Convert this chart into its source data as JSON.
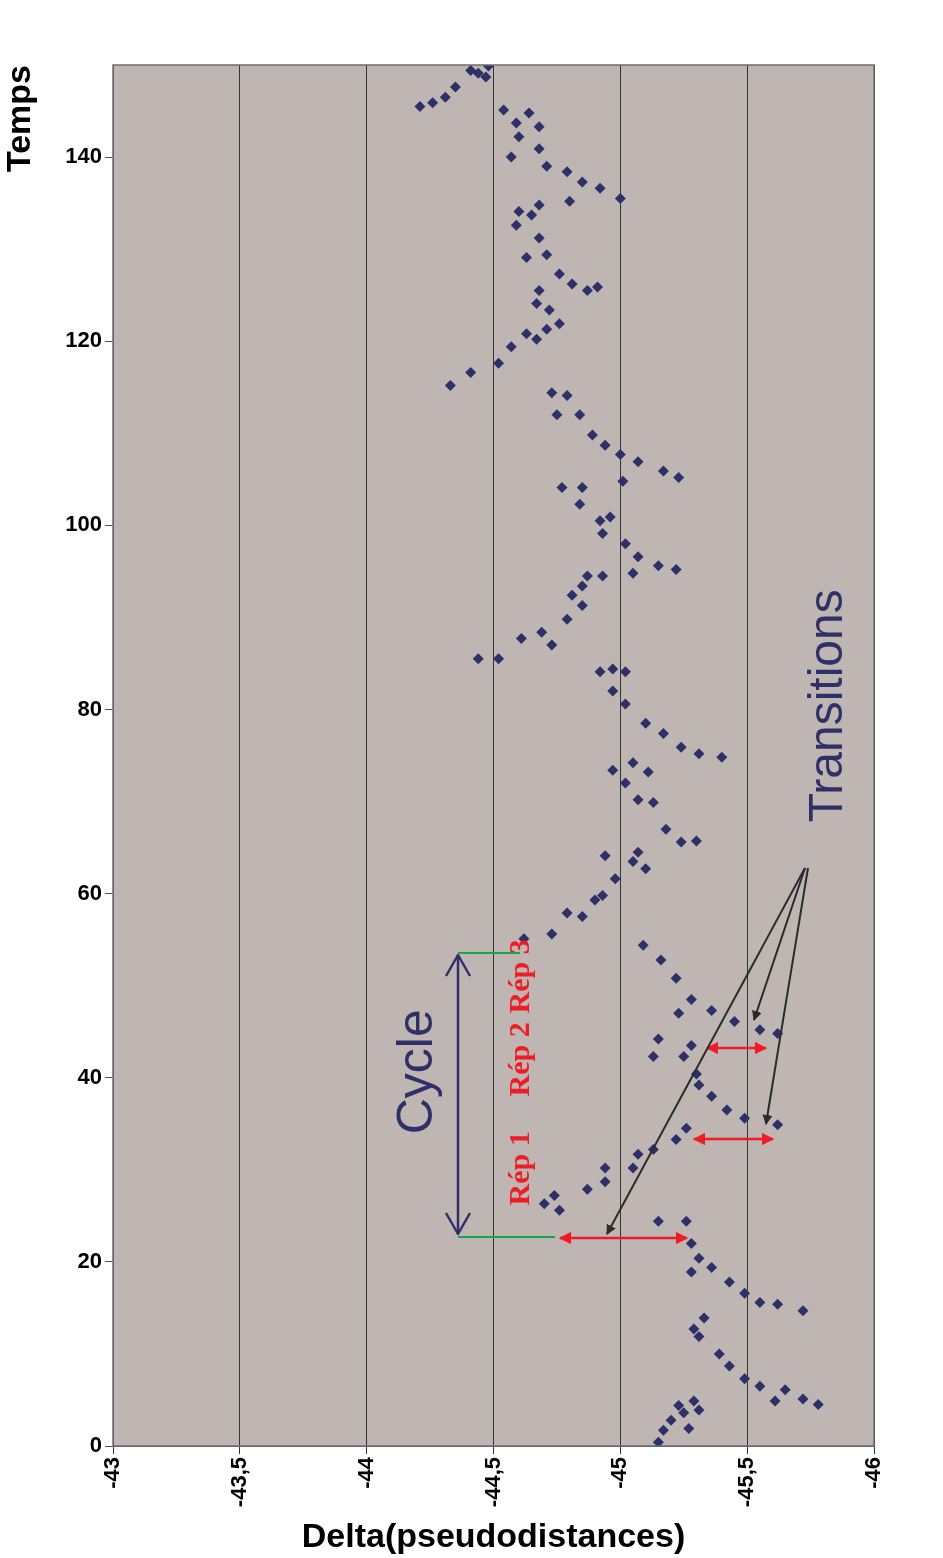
{
  "chart_data": {
    "type": "scatter",
    "xlabel": "Delta(pseudodistances)",
    "ylabel": "Temps",
    "xlim": [
      -43,
      -46
    ],
    "xticks": [
      -43,
      {
        "value": -43.5,
        "label": "-43,5"
      },
      -44,
      {
        "value": -44.5,
        "label": "-44,5"
      },
      -45,
      {
        "value": -45.5,
        "label": "-45,5"
      },
      -46
    ],
    "ylim": [
      0,
      150
    ],
    "yticks": [
      0,
      20,
      40,
      60,
      80,
      100,
      120,
      140
    ],
    "grid": "x",
    "marker": "diamond",
    "annotations": [
      "Cycle",
      "Rép 1",
      "Rép 2",
      "Rép 3",
      "Transitions"
    ],
    "series": [
      {
        "color": "#2e3068",
        "x": [
          -45.15,
          -45.17,
          -45.2,
          -45.27,
          -45.25,
          -45.23,
          -45.29,
          -45.31,
          -45.29,
          -45.33,
          -45.31,
          -45.39,
          -45.43,
          -45.49,
          -45.55,
          -45.61,
          -45.65,
          -45.72,
          -45.78,
          -45.26,
          -45.28,
          -45.31,
          -45.36,
          -45.28,
          -45.43,
          -45.49,
          -45.55,
          -45.62,
          -45.72,
          -45.15,
          -44.7,
          -44.76,
          -44.74,
          -44.87,
          -44.94,
          -44.94,
          -45.05,
          -45.07,
          -45.13,
          -45.22,
          -45.26,
          -45.15,
          -45.13,
          -45.25,
          -45.28,
          -45.3,
          -45.36,
          -45.42,
          -45.49,
          -45.62,
          -45.31,
          -45.09,
          -45.16,
          -45.22,
          -45.23,
          -45.28,
          -45.36,
          -45.45,
          -45.55,
          -45.62,
          -44.62,
          -44.73,
          -44.79,
          -44.85,
          -44.9,
          -44.93,
          -44.98,
          -44.94,
          -45.05,
          -45.1,
          -45.07,
          -44.97,
          -45.05,
          -45.11,
          -45.02,
          -45.07,
          -45.13,
          -45.18,
          -45.24,
          -45.3,
          -44.92,
          -44.97,
          -45.02,
          -44.97,
          -45.02,
          -45.1,
          -45.17,
          -45.24,
          -45.31,
          -45.4,
          -44.44,
          -44.52,
          -44.61,
          -44.69,
          -44.73,
          -44.79,
          -44.81,
          -44.85,
          -44.85,
          -44.87,
          -44.93,
          -44.77,
          -44.85,
          -44.84,
          -44.92,
          -44.96,
          -44.93,
          -45.02,
          -45.07,
          -45.15,
          -45.05,
          -45.22,
          -44.73,
          -44.79,
          -44.75,
          -44.84,
          -44.89,
          -44.94,
          -45.0,
          -45.07,
          -45.17,
          -45.23,
          -45.01,
          -44.33,
          -44.41,
          -44.52,
          -44.57,
          -44.63,
          -44.67,
          -44.71,
          -44.76,
          -44.67,
          -44.72,
          -44.68,
          -44.76,
          -44.81,
          -44.87,
          -44.91,
          -44.71,
          -44.63,
          -44.68,
          -44.59,
          -44.65,
          -44.6,
          -44.68,
          -44.54,
          -44.59,
          -44.64,
          -44.68,
          -44.6,
          -44.68,
          -44.57,
          -44.71,
          -44.79,
          -44.85,
          -44.92,
          -45.0,
          -44.8,
          -44.21,
          -44.26,
          -44.31,
          -44.35,
          -44.41,
          -44.44,
          -44.48,
          -44.47
        ],
        "values": [
          0.4,
          1.7,
          2.8,
          1.9,
          3.6,
          4.4,
          4.9,
          3.9,
          12.7,
          13.9,
          11.9,
          10.0,
          8.7,
          7.3,
          6.5,
          4.9,
          6.1,
          5.1,
          4.5,
          24.4,
          22.0,
          20.4,
          19.4,
          18.9,
          17.8,
          16.6,
          15.6,
          15.4,
          14.7,
          24.4,
          26.3,
          25.6,
          27.2,
          27.9,
          28.7,
          30.2,
          30.2,
          31.7,
          32.2,
          33.3,
          34.5,
          44.2,
          42.3,
          42.3,
          43.5,
          40.4,
          38.0,
          36.5,
          35.6,
          34.9,
          39.2,
          54.4,
          52.8,
          50.8,
          47.0,
          48.5,
          47.3,
          46.1,
          45.2,
          44.8,
          55.1,
          55.6,
          57.9,
          57.5,
          59.3,
          59.8,
          61.6,
          64.1,
          63.5,
          62.7,
          64.5,
          73.4,
          74.2,
          73.2,
          72.0,
          70.2,
          69.9,
          67.0,
          65.6,
          65.7,
          84.1,
          84.4,
          84.1,
          82.0,
          80.6,
          78.5,
          77.4,
          75.9,
          75.2,
          74.8,
          85.5,
          85.5,
          87.7,
          88.4,
          87.0,
          89.8,
          92.4,
          91.3,
          93.4,
          94.5,
          94.5,
          104.1,
          104.1,
          102.3,
          100.5,
          100.9,
          99.1,
          98.0,
          96.6,
          95.6,
          94.8,
          95.2,
          114.4,
          114.1,
          112.0,
          112.0,
          109.8,
          108.7,
          107.7,
          106.9,
          105.9,
          105.2,
          104.8,
          115.2,
          116.6,
          117.6,
          119.4,
          120.8,
          120.2,
          121.3,
          121.9,
          124.1,
          123.4,
          125.5,
          127.3,
          126.2,
          125.5,
          125.9,
          129.4,
          129.1,
          131.2,
          132.6,
          133.7,
          134.1,
          134.8,
          145.1,
          143.7,
          144.8,
          143.3,
          142.2,
          140.9,
          140.0,
          139.0,
          138.4,
          137.3,
          136.6,
          135.5,
          135.2,
          145.5,
          145.9,
          146.5,
          147.6,
          149.4,
          149.1,
          149.9,
          148.7
        ]
      }
    ]
  }
}
